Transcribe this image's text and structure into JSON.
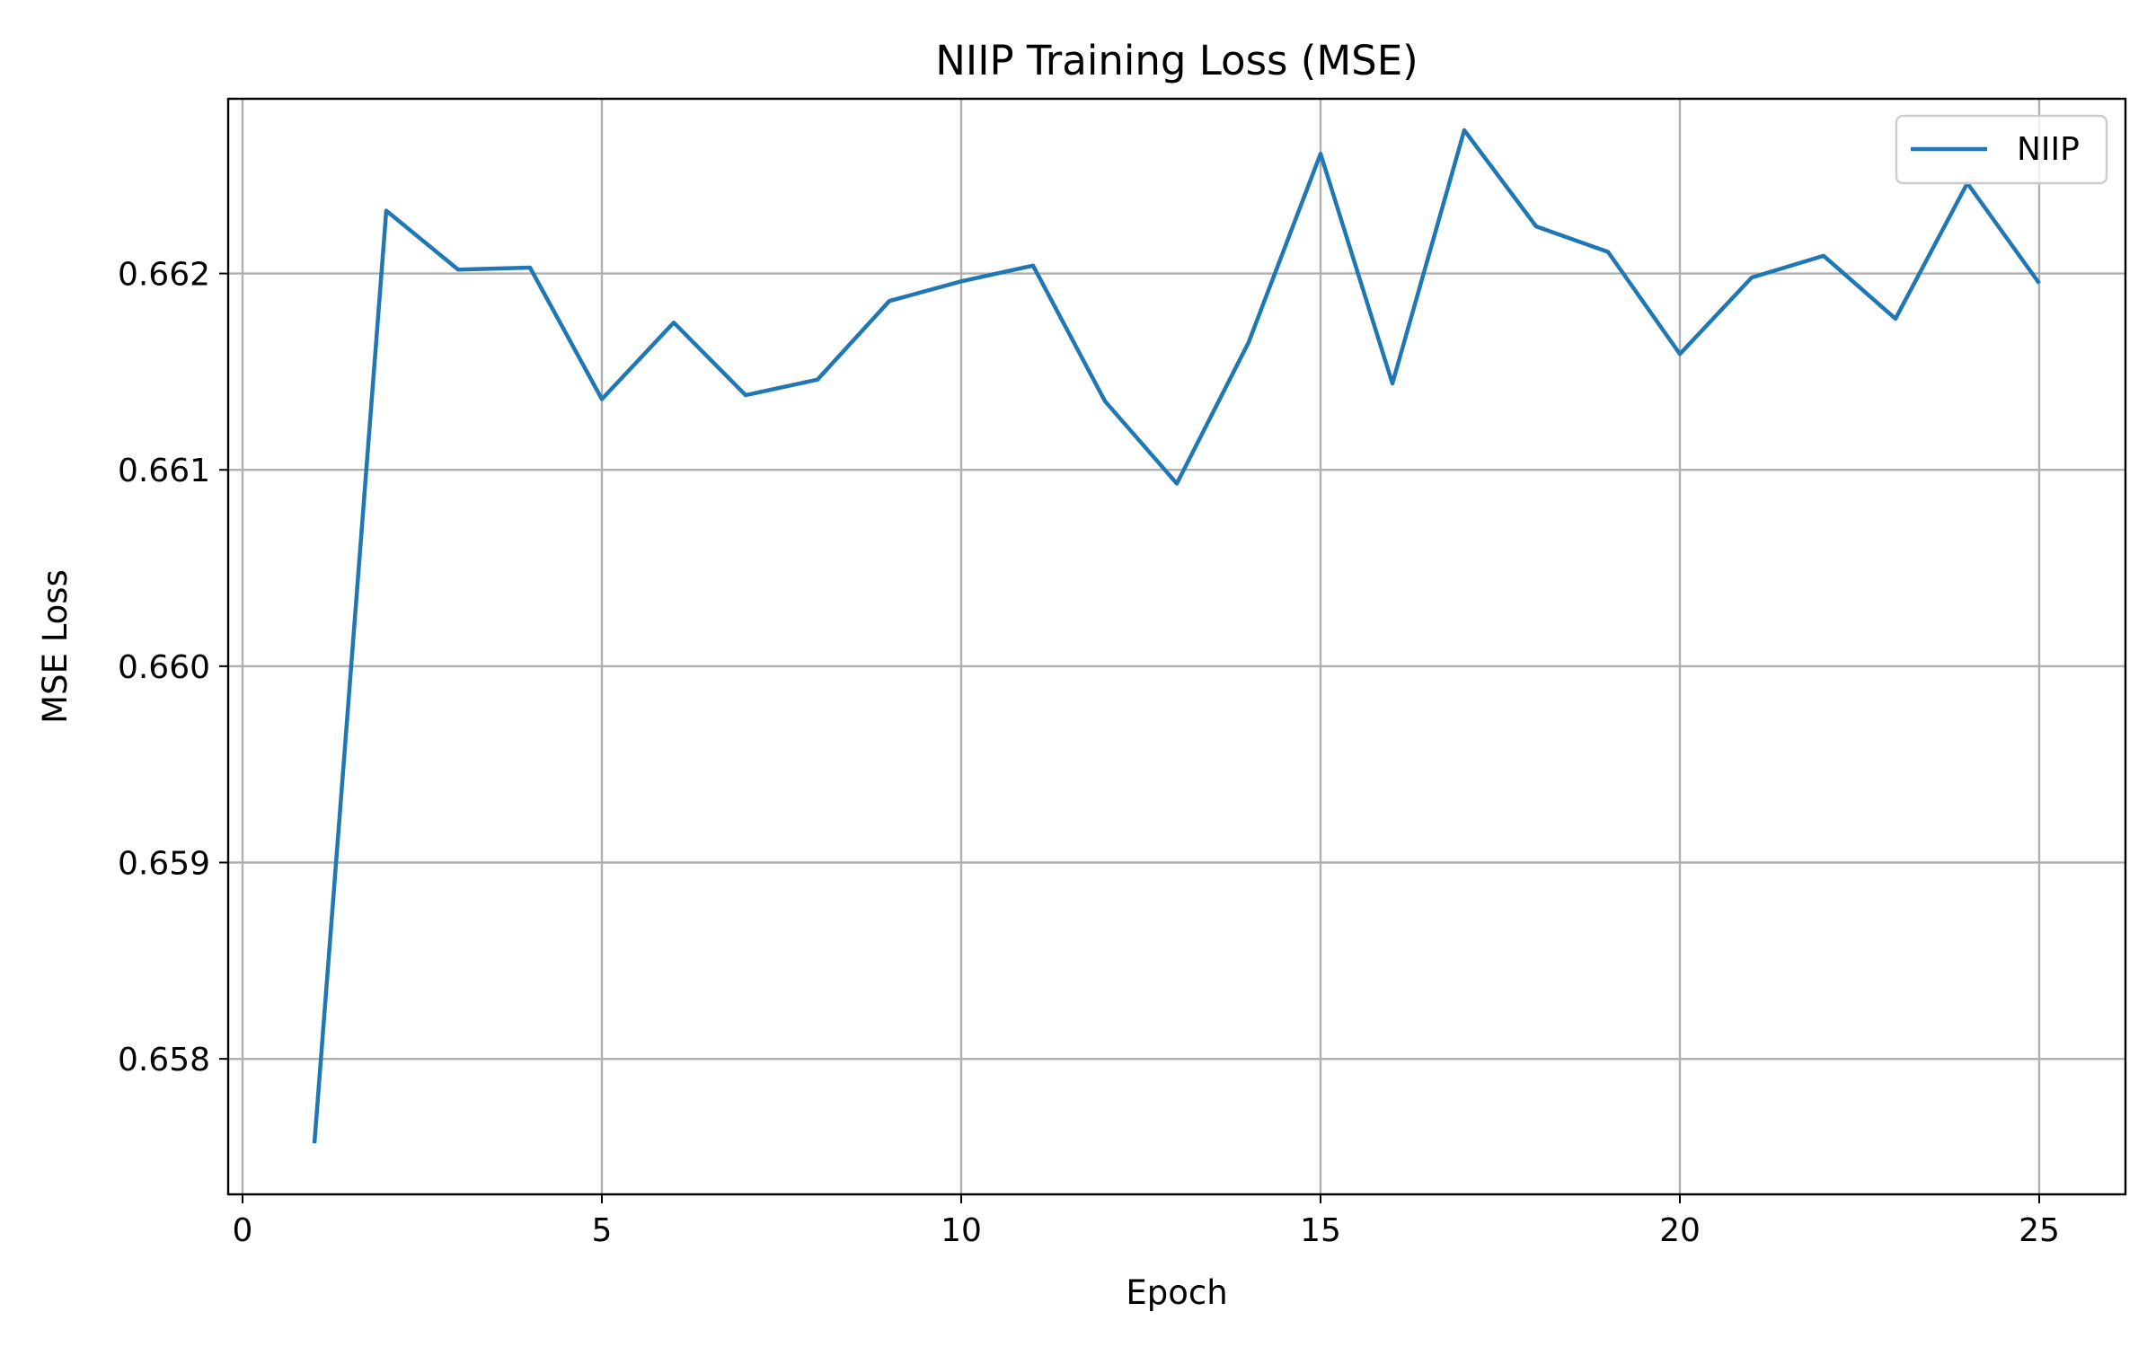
{
  "chart_data": {
    "type": "line",
    "title": "NIIP Training Loss (MSE)",
    "xlabel": "Epoch",
    "ylabel": "MSE Loss",
    "xlim": [
      -0.2,
      26.2
    ],
    "ylim": [
      0.65731,
      0.66289
    ],
    "xticks": [
      0,
      5,
      10,
      15,
      20,
      25
    ],
    "xtick_labels": [
      "0",
      "5",
      "10",
      "15",
      "20",
      "25"
    ],
    "yticks": [
      0.658,
      0.659,
      0.66,
      0.661,
      0.662
    ],
    "ytick_labels": [
      "0.658",
      "0.659",
      "0.660",
      "0.661",
      "0.662"
    ],
    "grid": true,
    "legend_position": "top-right",
    "series": [
      {
        "name": "NIIP",
        "color": "#1f77b4",
        "x": [
          1,
          2,
          3,
          4,
          5,
          6,
          7,
          8,
          9,
          10,
          11,
          12,
          13,
          14,
          15,
          16,
          17,
          18,
          19,
          20,
          21,
          22,
          23,
          24,
          25
        ],
        "y": [
          0.65757,
          0.66232,
          0.66202,
          0.66203,
          0.66136,
          0.66175,
          0.66138,
          0.66146,
          0.66186,
          0.66196,
          0.66204,
          0.66135,
          0.66093,
          0.66165,
          0.66261,
          0.66144,
          0.66273,
          0.66224,
          0.66211,
          0.66159,
          0.66198,
          0.66209,
          0.66177,
          0.66246,
          0.66195
        ]
      }
    ]
  }
}
